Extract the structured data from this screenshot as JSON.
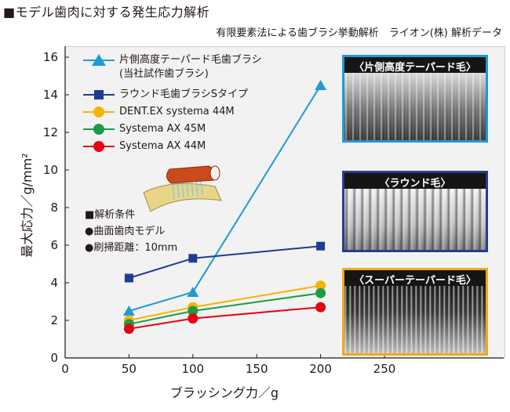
{
  "figure": {
    "title": "■モデル歯肉に対する発生応力解析",
    "subtitle": "有限要素法による歯ブラシ挙動解析　ライオン(株) 解析データ"
  },
  "conditions": {
    "heading": "■解析条件",
    "items": [
      "●曲面歯肉モデル",
      "●刷掃距離：10mm"
    ]
  },
  "photos": [
    {
      "label": "〈片側高度テーパード毛〉",
      "border_color": "#1e9ad6"
    },
    {
      "label": "〈ラウンド毛〉",
      "border_color": "#233f8f"
    },
    {
      "label": "〈スーパーテーパード毛〉",
      "border_color": "#f0a91a"
    }
  ],
  "chart_data": {
    "type": "line",
    "xlabel": "ブラッシング力／g",
    "ylabel": "最大応力／g/mm²",
    "xlim": [
      0,
      250
    ],
    "ylim": [
      0,
      16
    ],
    "xticks": [
      "0",
      "50",
      "100",
      "150",
      "200",
      "250"
    ],
    "yticks": [
      "0",
      "2",
      "4",
      "6",
      "8",
      "10",
      "12",
      "14",
      "16"
    ],
    "grid": false,
    "legend_position": "top-left",
    "x": [
      50,
      100,
      200
    ],
    "series": [
      {
        "name": "片側高度テーパード毛歯ブラシ",
        "name_line2": "(当社試作歯ブラシ)",
        "marker": "triangle",
        "color": "#1e9ad6",
        "values": [
          2.5,
          3.5,
          14.5
        ]
      },
      {
        "name": "ラウンド毛歯ブラシSタイプ",
        "marker": "square",
        "color": "#1f3b94",
        "values": [
          4.25,
          5.3,
          5.95
        ]
      },
      {
        "name": "DENT.EX systema 44M",
        "marker": "circle",
        "color": "#f5b400",
        "values": [
          2.0,
          2.7,
          3.85
        ]
      },
      {
        "name": "Systema AX 45M",
        "marker": "circle",
        "color": "#1e9a46",
        "values": [
          1.8,
          2.5,
          3.45
        ]
      },
      {
        "name": "Systema AX 44M",
        "marker": "circle",
        "color": "#e60012",
        "values": [
          1.55,
          2.1,
          2.7
        ]
      }
    ]
  }
}
